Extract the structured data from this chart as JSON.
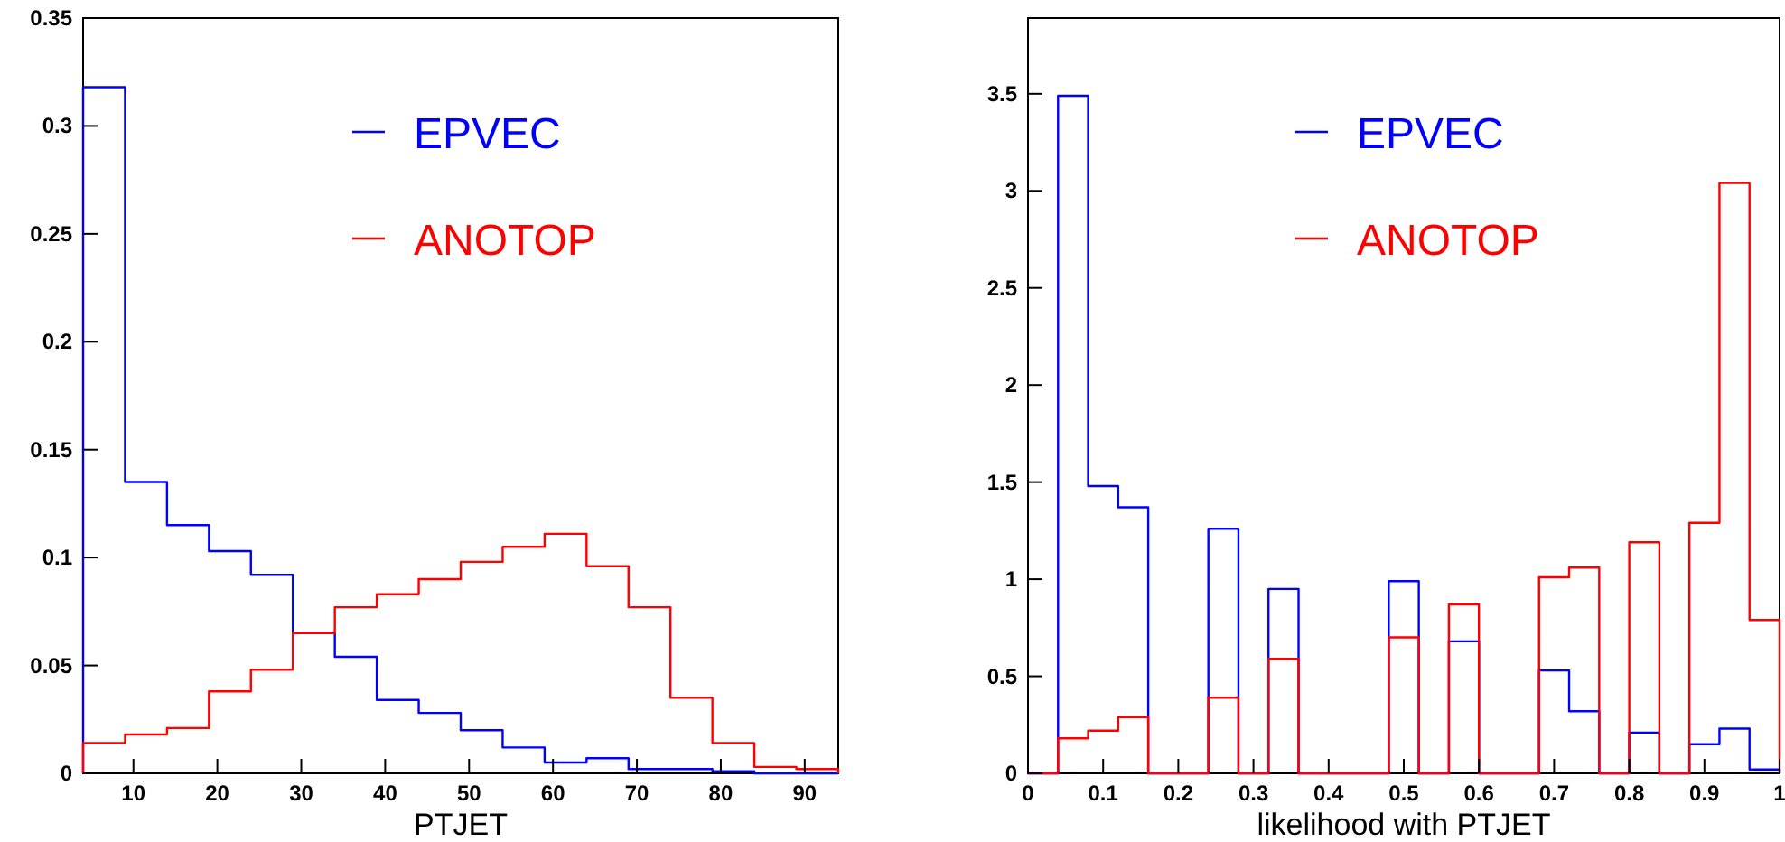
{
  "chart_data": [
    {
      "type": "histogram",
      "xlabel": "PTJET",
      "bins": [
        4,
        9,
        14,
        19,
        24,
        29,
        34,
        39,
        44,
        49,
        54,
        59,
        64,
        69,
        74,
        79,
        84,
        89,
        94
      ],
      "xlim": [
        4,
        94
      ],
      "xticks": [
        10,
        20,
        30,
        40,
        50,
        60,
        70,
        80,
        90
      ],
      "ylim": [
        0,
        0.35
      ],
      "yticks": [
        0,
        0.05,
        0.1,
        0.15,
        0.2,
        0.25,
        0.3,
        0.35
      ],
      "legend": "top",
      "series": [
        {
          "name": "EPVEC",
          "color": "#0000ff",
          "values": [
            0.318,
            0.135,
            0.115,
            0.103,
            0.092,
            0.065,
            0.054,
            0.034,
            0.028,
            0.02,
            0.012,
            0.005,
            0.007,
            0.002,
            0.002,
            0.001,
            0,
            0
          ]
        },
        {
          "name": "ANOTOP",
          "color": "#ff0000",
          "values": [
            0.014,
            0.018,
            0.021,
            0.038,
            0.048,
            0.065,
            0.077,
            0.083,
            0.09,
            0.098,
            0.105,
            0.111,
            0.096,
            0.077,
            0.035,
            0.014,
            0.003,
            0.002
          ]
        }
      ]
    },
    {
      "type": "histogram",
      "xlabel": "likelihood with PTJET",
      "bins": [
        0,
        0.04,
        0.08,
        0.12,
        0.16,
        0.2,
        0.24,
        0.28,
        0.32,
        0.36,
        0.4,
        0.44,
        0.48,
        0.52,
        0.56,
        0.6,
        0.64,
        0.68,
        0.72,
        0.76,
        0.8,
        0.84,
        0.88,
        0.92,
        0.96,
        1
      ],
      "xlim": [
        0,
        1
      ],
      "xticks": [
        0,
        0.1,
        0.2,
        0.3,
        0.4,
        0.5,
        0.6,
        0.7,
        0.8,
        0.9,
        1
      ],
      "ylim": [
        0,
        3.89
      ],
      "yticks": [
        0,
        0.5,
        1,
        1.5,
        2,
        2.5,
        3,
        3.5
      ],
      "legend": "top",
      "series": [
        {
          "name": "EPVEC",
          "color": "#0000ff",
          "values": [
            0,
            3.49,
            1.48,
            1.37,
            0,
            0,
            1.26,
            0,
            0.95,
            0,
            0,
            0,
            0.99,
            0,
            0.68,
            0,
            0,
            0.53,
            0.32,
            0,
            0.21,
            0,
            0.15,
            0.23,
            0.02
          ]
        },
        {
          "name": "ANOTOP",
          "color": "#ff0000",
          "values": [
            0,
            0.18,
            0.22,
            0.29,
            0,
            0,
            0.39,
            0,
            0.59,
            0,
            0,
            0,
            0.7,
            0,
            0.87,
            0,
            0,
            1.01,
            1.06,
            0,
            1.19,
            0,
            1.29,
            3.04,
            0.79
          ]
        }
      ]
    }
  ]
}
